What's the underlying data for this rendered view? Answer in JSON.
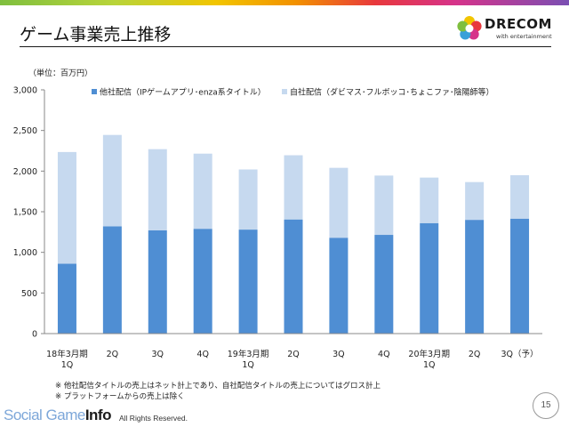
{
  "slide": {
    "title": "ゲーム事業売上推移",
    "page_number": "15"
  },
  "brand": {
    "name": "DRECOM",
    "tagline": "with entertainment"
  },
  "chart_data": {
    "type": "bar",
    "stacked": true,
    "unit_label": "（単位：百万円）",
    "categories": [
      "18年3月期\n1Q",
      "2Q",
      "3Q",
      "4Q",
      "19年3月期\n1Q",
      "2Q",
      "3Q",
      "4Q",
      "20年3月期\n1Q",
      "2Q",
      "3Q（予）"
    ],
    "series": [
      {
        "name": "他社配信（IPゲームアプリ･enza系タイトル）",
        "color": "#4f8ed3",
        "values": [
          860,
          1320,
          1270,
          1290,
          1280,
          1405,
          1180,
          1215,
          1360,
          1400,
          1415
        ]
      },
      {
        "name": "自社配信（ダビマス･フルボッコ･ちょこファ･陰陽師等）",
        "color": "#c6d9ef",
        "values": [
          1375,
          1125,
          1000,
          925,
          740,
          790,
          860,
          730,
          560,
          465,
          535
        ]
      }
    ],
    "ylim": [
      0,
      3000
    ],
    "yticks": [
      "3,000",
      "2,500",
      "2,000",
      "1,500",
      "1,000",
      "500",
      "0"
    ],
    "legend_position": "top",
    "grid": false
  },
  "notes": [
    "※ 他社配信タイトルの売上はネット計上であり、自社配信タイトルの売上についてはグロス計上",
    "※ プラットフォームからの売上は除く"
  ],
  "watermark": {
    "part1": "Social Game",
    "part2": "Info"
  },
  "copyright": "All Rights Reserved."
}
